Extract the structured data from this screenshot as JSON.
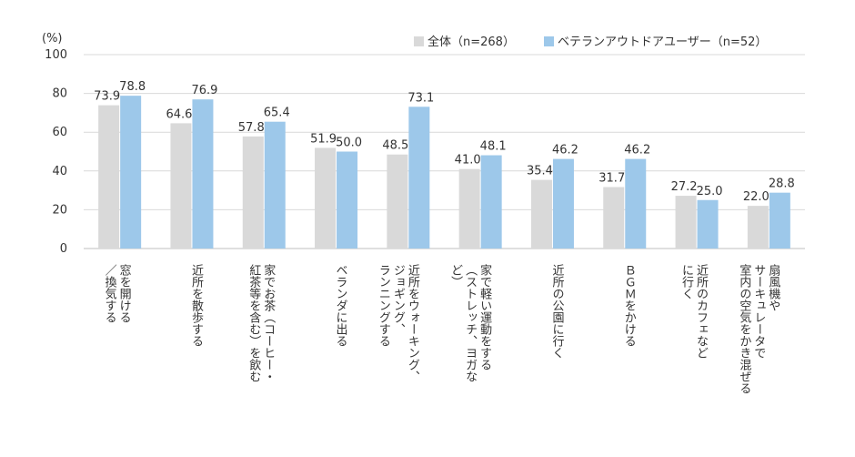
{
  "chart_data": {
    "type": "bar",
    "unit_label": "(%)",
    "ylim": [
      0,
      100
    ],
    "yticks": [
      0,
      20,
      40,
      60,
      80,
      100
    ],
    "grid": true,
    "legend_position": "top-right",
    "categories": [
      "窓を開ける\n／換気する",
      "近所を散歩する",
      "家でお茶（コーヒー・\n紅茶等を含む）を飲む",
      "ベランダに出る",
      "近所をウォーキング、\nジョギング、\nランニングする",
      "家で軽い運動をする\n（ストレッチ、ヨガな\nど）",
      "近所の公園に行く",
      "ＢＧＭをかける",
      "近所のカフェなど\nに行く",
      "扇風機や\nサーキュレータで\n室内の空気をかき混ぜる"
    ],
    "series": [
      {
        "name": "全体（n=268）",
        "color": "#d9d9d9",
        "values": [
          73.9,
          64.6,
          57.8,
          51.9,
          48.5,
          41.0,
          35.4,
          31.7,
          27.2,
          22.0
        ]
      },
      {
        "name": "ベテランアウトドアユーザー（n=52）",
        "color": "#9dc8ea",
        "values": [
          78.8,
          76.9,
          65.4,
          50.0,
          73.1,
          48.1,
          46.2,
          46.2,
          25.0,
          28.8
        ]
      }
    ]
  }
}
